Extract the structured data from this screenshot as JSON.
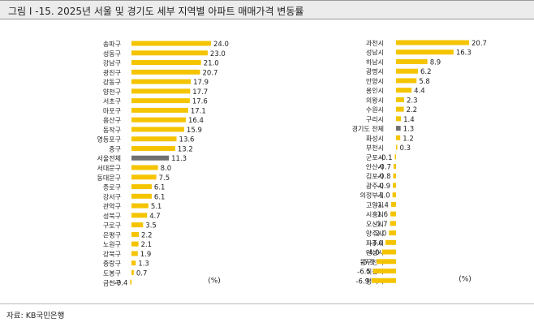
{
  "title": "그림 I -15. 2025년 서울 및 경기도 세부 지역별 아파트 매매가격 변동률",
  "source": "자료: KB국민은행",
  "colors": {
    "bar": "#f5c400",
    "highlight": "#707070",
    "text": "#222222"
  },
  "chart_data": [
    {
      "type": "bar",
      "orientation": "horizontal",
      "unit": "(%)",
      "categories": [
        "송파구",
        "성동구",
        "강남구",
        "광진구",
        "강동구",
        "양천구",
        "서초구",
        "마포구",
        "용산구",
        "동작구",
        "영등포구",
        "중구",
        "서울전체",
        "서대문구",
        "동대문구",
        "종로구",
        "강서구",
        "관악구",
        "성북구",
        "구로구",
        "은평구",
        "노원구",
        "강북구",
        "중랑구",
        "도봉구",
        "금천구"
      ],
      "values": [
        24.0,
        23.0,
        21.0,
        20.7,
        17.9,
        17.7,
        17.6,
        17.1,
        16.4,
        15.9,
        13.6,
        13.2,
        11.3,
        8.0,
        7.5,
        6.1,
        6.1,
        5.1,
        4.7,
        3.5,
        2.2,
        2.1,
        1.9,
        1.3,
        0.7,
        -0.4
      ],
      "labels": [
        "24.0",
        "23.0",
        "21.0",
        "20.7",
        "17.9",
        "17.7",
        "17.6",
        "17.1",
        "16.4",
        "15.9",
        "13.6",
        "13.2",
        "11.3",
        "8.0",
        "7.5",
        "6.1",
        "6.1",
        "5.1",
        "4.7",
        "3.5",
        "2.2",
        "2.1",
        "1.9",
        "1.3",
        "0.7",
        "-0.4"
      ],
      "highlight": "서울전체"
    },
    {
      "type": "bar",
      "orientation": "horizontal",
      "unit": "(%)",
      "categories": [
        "과천시",
        "성남시",
        "하남시",
        "광명시",
        "안양시",
        "용인시",
        "의왕시",
        "수원시",
        "구리시",
        "경기도 전체",
        "화성시",
        "부천시",
        "군포시",
        "안산시",
        "김포시",
        "광주시",
        "의정부시",
        "고양시",
        "시흥시",
        "오산시",
        "양주시",
        "파주시",
        "안성시",
        "동두천시",
        "이천시",
        "평택시"
      ],
      "values": [
        20.7,
        16.3,
        8.9,
        6.2,
        5.8,
        4.4,
        2.3,
        2.2,
        1.4,
        1.3,
        1.2,
        0.3,
        -0.1,
        -0.7,
        -0.8,
        -0.9,
        -1.0,
        -1.4,
        -1.6,
        -1.7,
        -2.0,
        -3.0,
        -4.0,
        -5.5,
        -6.5,
        -6.9
      ],
      "labels": [
        "20.7",
        "16.3",
        "8.9",
        "6.2",
        "5.8",
        "4.4",
        "2.3",
        "2.2",
        "1.4",
        "1.3",
        "1.2",
        "0.3",
        "-0.1",
        "-0.7",
        "-0.8",
        "-0.9",
        "-1.0",
        "-1.4",
        "-1.6",
        "-1.7",
        "-2.0",
        "-3.0",
        "-4.0",
        "-5.5",
        "-6.5",
        "-6.9"
      ],
      "highlight": "경기도 전체"
    }
  ]
}
